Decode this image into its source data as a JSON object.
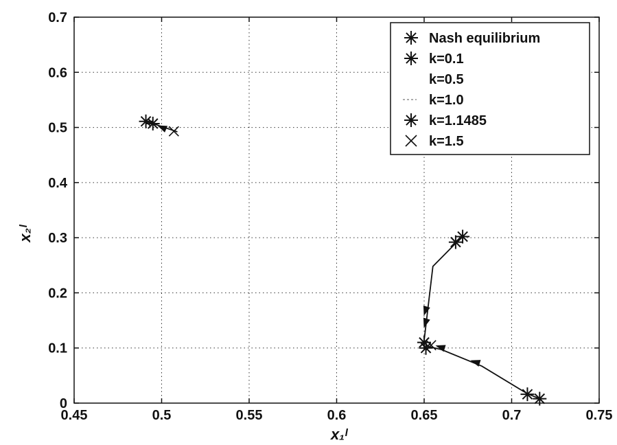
{
  "chart_data": {
    "type": "line",
    "title": "",
    "xlabel": "x₁ᴵ",
    "ylabel": "x₂ᴵ",
    "xlim": [
      0.45,
      0.75
    ],
    "ylim": [
      0,
      0.7
    ],
    "x_ticks": [
      "0.45",
      "0.5",
      "0.55",
      "0.6",
      "0.65",
      "0.7",
      "0.75"
    ],
    "y_ticks": [
      "0",
      "0.1",
      "0.2",
      "0.3",
      "0.4",
      "0.5",
      "0.6",
      "0.7"
    ],
    "x_tick_values": [
      0.45,
      0.5,
      0.55,
      0.6,
      0.65,
      0.7,
      0.75
    ],
    "y_tick_values": [
      0,
      0.1,
      0.2,
      0.3,
      0.4,
      0.5,
      0.6,
      0.7
    ],
    "grid": true,
    "legend_position": "top-right",
    "legend": [
      {
        "label": "Nash equilibrium",
        "marker": "asterisk",
        "color": "#111111"
      },
      {
        "label": "k=0.1",
        "marker": "asterisk",
        "color": "#111111"
      },
      {
        "label": "k=0.5",
        "marker": "none",
        "color": "#dddddd"
      },
      {
        "label": "k=1.0",
        "marker": "dash",
        "color": "#aaaaaa"
      },
      {
        "label": "k=1.1485",
        "marker": "asterisk",
        "color": "#111111"
      },
      {
        "label": "k=1.5",
        "marker": "x-cross",
        "color": "#111111"
      }
    ],
    "series": [
      {
        "x": [
          0.509,
          0.495,
          0.491
        ],
        "y": [
          0.492,
          0.507,
          0.511
        ],
        "color": "#111111"
      },
      {
        "x": [
          0.672,
          0.669,
          0.655,
          0.65,
          0.652,
          0.66,
          0.683,
          0.709,
          0.716
        ],
        "y": [
          0.302,
          0.293,
          0.248,
          0.114,
          0.103,
          0.097,
          0.067,
          0.017,
          0.008
        ],
        "color": "#111111"
      }
    ],
    "arrows": [
      {
        "x": [
          0.501,
          0.498
        ],
        "y": [
          0.499,
          0.503
        ]
      },
      {
        "x": [
          0.652,
          0.65
        ],
        "y": [
          0.158,
          0.138
        ]
      },
      {
        "x": [
          0.685,
          0.677
        ],
        "y": [
          0.069,
          0.077
        ]
      },
      {
        "x": [
          0.661,
          0.657
        ],
        "y": [
          0.1,
          0.104
        ]
      },
      {
        "x": [
          0.652,
          0.65
        ],
        "y": [
          0.18,
          0.16
        ]
      }
    ],
    "markers": [
      {
        "x": 0.491,
        "y": 0.511,
        "symbol": "asterisk"
      },
      {
        "x": 0.495,
        "y": 0.507,
        "symbol": "asterisk"
      },
      {
        "x": 0.672,
        "y": 0.302,
        "symbol": "asterisk"
      },
      {
        "x": 0.668,
        "y": 0.292,
        "symbol": "asterisk"
      },
      {
        "x": 0.651,
        "y": 0.1,
        "symbol": "asterisk"
      },
      {
        "x": 0.65,
        "y": 0.11,
        "symbol": "asterisk"
      },
      {
        "x": 0.709,
        "y": 0.016,
        "symbol": "asterisk"
      },
      {
        "x": 0.716,
        "y": 0.008,
        "symbol": "asterisk"
      },
      {
        "x": 0.507,
        "y": 0.493,
        "symbol": "x-cross"
      },
      {
        "x": 0.654,
        "y": 0.105,
        "symbol": "x-cross"
      }
    ]
  }
}
